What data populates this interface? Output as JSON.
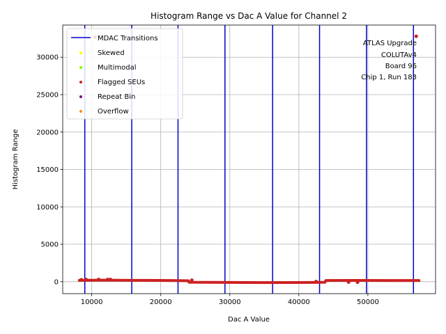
{
  "chart_data": {
    "type": "scatter",
    "title": "Histogram Range vs Dac A Value for Channel 2",
    "xlabel": "Dac A Value",
    "ylabel": "Histogram Range",
    "xlim": [
      5800,
      59800
    ],
    "ylim": [
      -1600,
      34300
    ],
    "xticks": [
      10000,
      20000,
      30000,
      40000,
      50000
    ],
    "yticks": [
      0,
      5000,
      10000,
      15000,
      20000,
      25000,
      30000
    ],
    "grid": true,
    "legend_position": "upper-left",
    "legend": [
      {
        "label": "MDAC Transitions",
        "kind": "line",
        "color": "#0000cc"
      },
      {
        "label": "Skewed",
        "kind": "dot",
        "color": "#ffff00"
      },
      {
        "label": "Multimodal",
        "kind": "dot",
        "color": "#7fff00"
      },
      {
        "label": "Flagged SEUs",
        "kind": "dot",
        "color": "#cc2222"
      },
      {
        "label": "Repeat Bin",
        "kind": "dot",
        "color": "#800080"
      },
      {
        "label": "Overflow",
        "kind": "dot",
        "color": "#ff8c00"
      }
    ],
    "annotation": [
      "ATLAS Upgrade",
      "COLUTAv4",
      "Board 96",
      "Chip 1, Run 183"
    ],
    "mdac_transitions": [
      9000,
      15800,
      22500,
      29300,
      36200,
      43000,
      49800,
      56600
    ],
    "series": [
      {
        "name": "Flagged SEUs",
        "color": "#cc2222",
        "trend": [
          [
            8200,
            180
          ],
          [
            12000,
            200
          ],
          [
            16000,
            180
          ],
          [
            20000,
            170
          ],
          [
            24000,
            120
          ],
          [
            24100,
            -80
          ],
          [
            30000,
            -100
          ],
          [
            36000,
            -120
          ],
          [
            42000,
            -100
          ],
          [
            43800,
            -80
          ],
          [
            43900,
            150
          ],
          [
            48000,
            170
          ],
          [
            53000,
            160
          ],
          [
            57400,
            150
          ]
        ],
        "points": [
          [
            10500,
            32700
          ],
          [
            57000,
            32800
          ],
          [
            11000,
            300
          ],
          [
            12300,
            290
          ],
          [
            12700,
            310
          ],
          [
            8500,
            260
          ],
          [
            9200,
            280
          ],
          [
            24500,
            200
          ],
          [
            48500,
            -90
          ],
          [
            47200,
            -60
          ],
          [
            42500,
            20
          ]
        ]
      }
    ]
  }
}
